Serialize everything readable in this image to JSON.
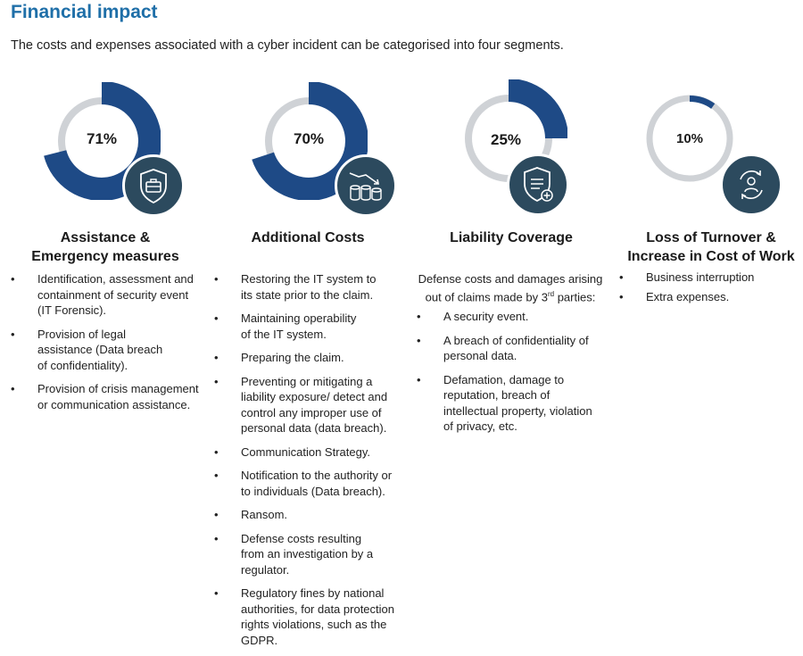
{
  "header": {
    "title": "Financial impact",
    "subtitle": "The costs and expenses associated with a cyber incident  can be categorised into four segments."
  },
  "colors": {
    "navy": "#1e4a86",
    "ring": "#cfd2d6",
    "badge": "#2c4a5e",
    "title": "#1f6fa8"
  },
  "columns": [
    {
      "percent_label": "71%",
      "percent_value": 71,
      "icon": "briefcase-shield-icon",
      "heading_lines": [
        "Assistance &",
        "Emergency measures"
      ],
      "intro": "",
      "bullets": [
        "Identification, assessment and containment of security event (IT Forensic).",
        "Provision of legal assistance (Data breach of confidentiality).",
        "Provision of crisis management or communication assistance."
      ]
    },
    {
      "percent_label": "70%",
      "percent_value": 70,
      "icon": "coins-decline-icon",
      "heading_lines": [
        "Additional Costs"
      ],
      "intro": "",
      "bullets": [
        "Restoring the IT system to its state prior to the claim.",
        "Maintaining operability of the IT system.",
        "Preparing the claim.",
        "Preventing or mitigating a liability exposure/ detect and control any improper use of personal data (data breach).",
        "Communication Strategy.",
        "Notification to the authority or to individuals (Data breach).",
        "Ransom.",
        "Defense costs resulting from an investigation by a regulator.",
        "Regulatory fines by national authorities, for data protection rights violations, such as the GDPR."
      ]
    },
    {
      "percent_label": "25%",
      "percent_value": 25,
      "icon": "document-shield-icon",
      "heading_lines": [
        "Liability Coverage"
      ],
      "intro_before": "Defense costs and damages arising out of claims made by 3",
      "intro_sup": "rd",
      "intro_after": " parties:",
      "bullets": [
        "A security event.",
        "A breach of confidentiality of personal data.",
        "Defamation, damage to reputation, breach of intellectual property, violation of privacy, etc."
      ]
    },
    {
      "percent_label": "10%",
      "percent_value": 10,
      "icon": "person-refresh-icon",
      "heading_lines": [
        "Loss of Turnover &",
        "Increase in Cost of Work"
      ],
      "intro": "",
      "bullets": [
        "Business interruption",
        "Extra expenses."
      ]
    }
  ]
}
